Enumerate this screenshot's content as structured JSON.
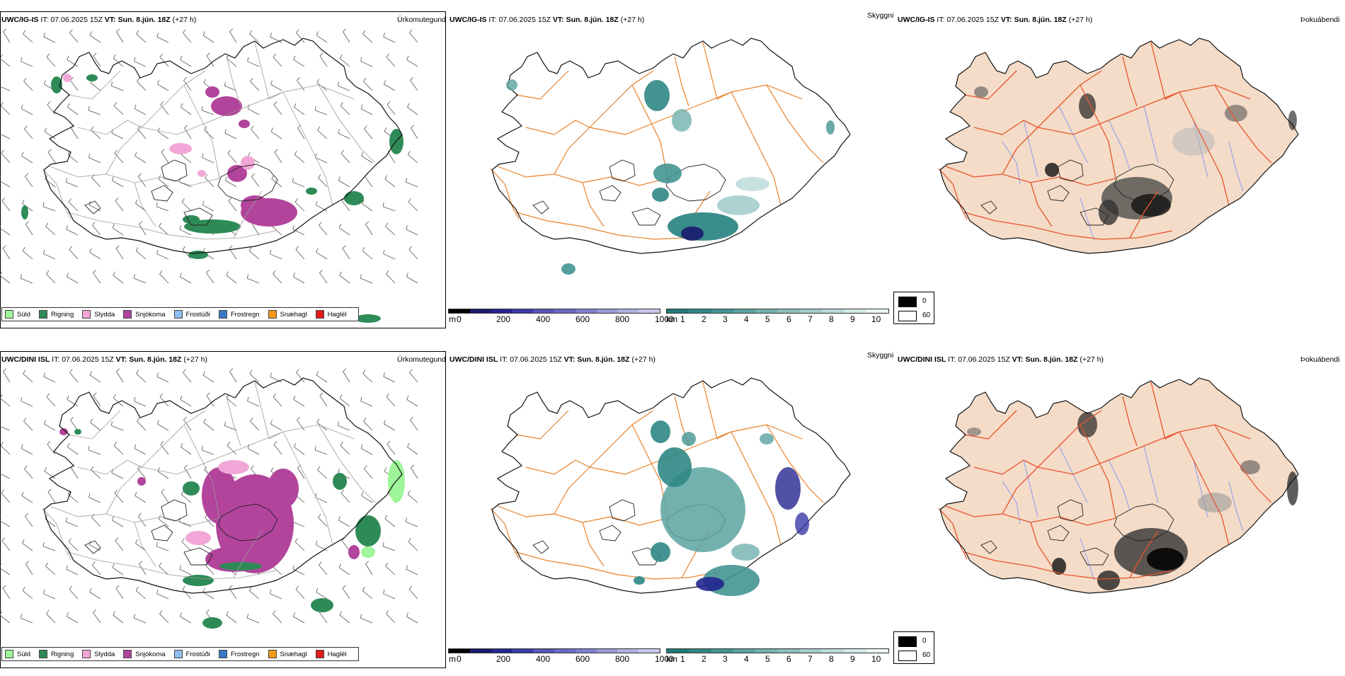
{
  "rows": [
    {
      "model": "UWC/IG-IS",
      "it_label": "IT:",
      "it_value": "07.06.2025 15Z",
      "vt_label": "VT:",
      "vt_value": "Sun. 8.jún. 18Z",
      "lead": "(+27 h)"
    },
    {
      "model": "UWC/DINI ISL",
      "it_label": "IT:",
      "it_value": "07.06.2025 15Z",
      "vt_label": "VT:",
      "vt_value": "Sun. 8.jún. 18Z",
      "lead": "(+27 h)"
    }
  ],
  "panel_types": {
    "precip": "Úrkomutegund",
    "visibility": "Skyggni",
    "fog": "Þokuábendi"
  },
  "precip_legend": [
    {
      "label": "Súld",
      "color": "#9ef59a"
    },
    {
      "label": "Rigning",
      "color": "#2e8b57"
    },
    {
      "label": "Slydda",
      "color": "#f2a7d8"
    },
    {
      "label": "Snjókoma",
      "color": "#b2449c"
    },
    {
      "label": "Frostúði",
      "color": "#8fbff0"
    },
    {
      "label": "Frostregn",
      "color": "#3a78c4"
    },
    {
      "label": "Snæhagl",
      "color": "#f39a1a"
    },
    {
      "label": "Haglél",
      "color": "#e31a1c"
    }
  ],
  "vis_scale": {
    "unit_m": "m",
    "m_ticks": [
      "0",
      "200",
      "400",
      "600",
      "800",
      "1000"
    ],
    "m_colors": [
      "#000000",
      "#1a1a6e",
      "#25258f",
      "#3a3aa8",
      "#5656b8",
      "#6a6ac4",
      "#8080ce",
      "#9a9ad8",
      "#b0b0e2",
      "#c8c8ec"
    ],
    "unit_km": "km",
    "km_ticks": [
      "1",
      "2",
      "3",
      "4",
      "5",
      "6",
      "7",
      "8",
      "9",
      "10"
    ],
    "km_colors": [
      "#1f7a78",
      "#2f8784",
      "#449592",
      "#5aa3a0",
      "#72b1ae",
      "#8abfbd",
      "#a3cdcb",
      "#bcdbd9",
      "#d4e9e8",
      "#ecf5f5"
    ]
  },
  "fog_legend": [
    {
      "label": "0",
      "color": "#000000"
    },
    {
      "label": "60",
      "color": "#ffffff"
    }
  ],
  "colors": {
    "land_fog": "#f4dcc8",
    "roads_fog": "#e8542c",
    "roads_vis": "#e8822c",
    "rivers": "#8a9cf0",
    "coast": "#111111",
    "wind_barb": "#555555"
  }
}
